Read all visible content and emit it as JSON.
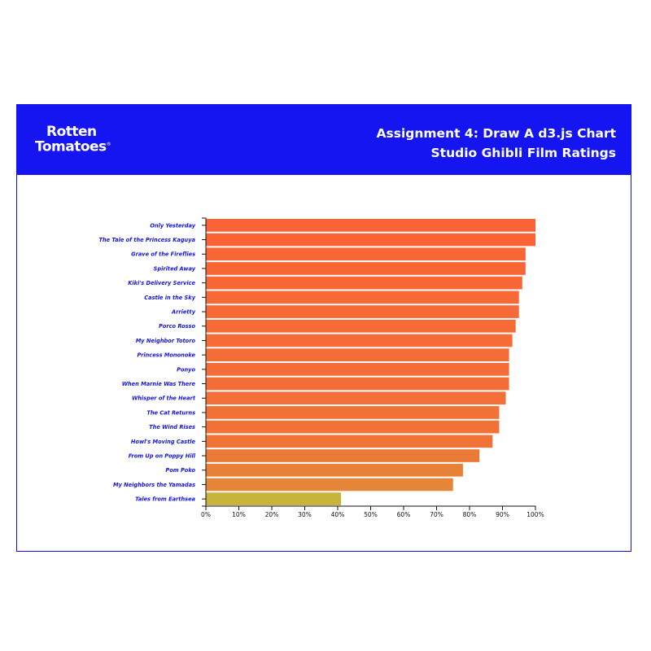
{
  "header": {
    "logo_line1": "Rotten",
    "logo_line2": "Tomatoes",
    "logo_mark": "®",
    "title_line1": "Assignment 4: Draw A d3.js Chart",
    "title_line2": "Studio Ghibli Film Ratings"
  },
  "colors": {
    "header_bg": "#1515f2",
    "label_color": "#1515e0",
    "bar_high": "#fb6236",
    "bar_low": "#c8b43a"
  },
  "chart_data": {
    "type": "bar",
    "orientation": "horizontal",
    "title": "Studio Ghibli Film Ratings",
    "xlabel": "",
    "ylabel": "",
    "xlim": [
      0,
      100
    ],
    "x_ticks": [
      "0%",
      "10%",
      "20%",
      "30%",
      "40%",
      "50%",
      "60%",
      "70%",
      "80%",
      "90%",
      "100%"
    ],
    "categories": [
      "Only Yesterday",
      "The Tale of the Princess Kaguya",
      "Grave of the Fireflies",
      "Spirited Away",
      "Kiki's Delivery Service",
      "Castle in the Sky",
      "Arrietty",
      "Porco Rosso",
      "My Neighbor Totoro",
      "Princess Mononoke",
      "Ponyo",
      "When Marnie Was There",
      "Whisper of the Heart",
      "The Cat Returns",
      "The Wind Rises",
      "Howl's Moving Castle",
      "From Up on Poppy Hill",
      "Pom Poko",
      "My Neighbors the Yamadas",
      "Tales from Earthsea"
    ],
    "values": [
      100,
      100,
      97,
      97,
      96,
      95,
      95,
      94,
      93,
      92,
      92,
      92,
      91,
      89,
      89,
      87,
      83,
      78,
      75,
      41
    ]
  }
}
